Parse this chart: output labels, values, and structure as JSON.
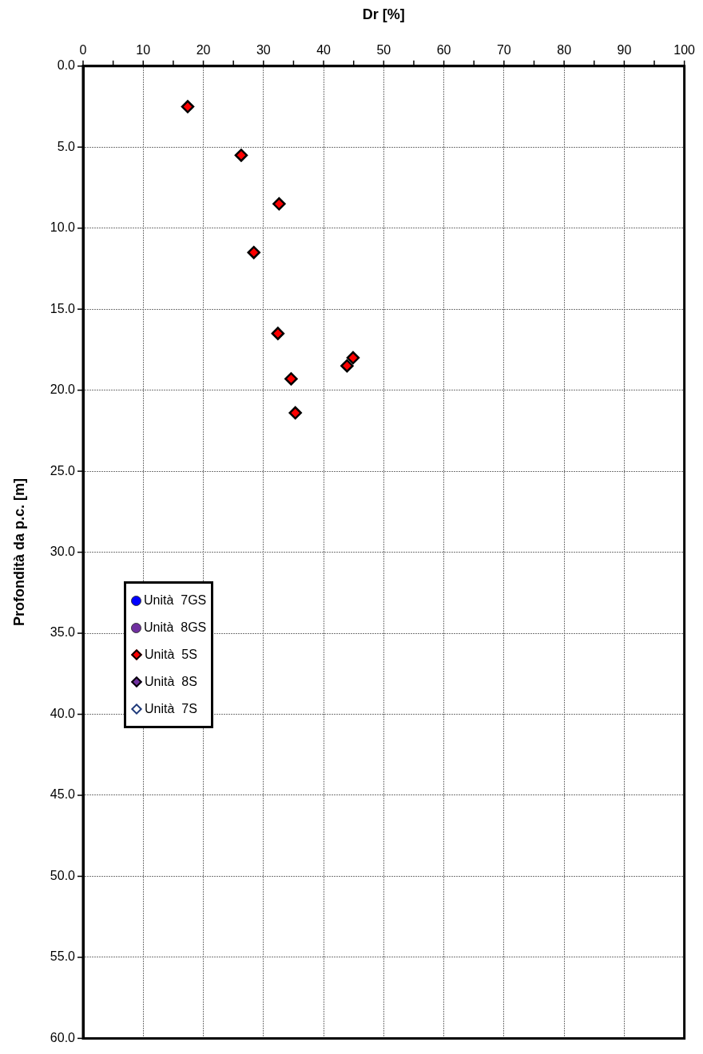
{
  "chart_data": {
    "type": "scatter",
    "xlabel": "Dr [%]",
    "ylabel": "Profondità da p.c. [m]",
    "xlim": [
      0,
      100
    ],
    "xticks": [
      0,
      {
        "value": 5,
        "label": null
      },
      10,
      {
        "value": 15,
        "label": null
      },
      20,
      {
        "value": 25,
        "label": null
      },
      30,
      {
        "value": 35,
        "label": null
      },
      40,
      {
        "value": 45,
        "label": null
      },
      50,
      {
        "value": 55,
        "label": null
      },
      60,
      {
        "value": 65,
        "label": null
      },
      70,
      {
        "value": 75,
        "label": null
      },
      80,
      {
        "value": 85,
        "label": null
      },
      90,
      {
        "value": 95,
        "label": null
      },
      100
    ],
    "ylim": [
      60,
      0
    ],
    "yticks": [
      {
        "value": 0,
        "label": "0.0"
      },
      {
        "value": 5,
        "label": "5.0"
      },
      {
        "value": 10,
        "label": "10.0"
      },
      {
        "value": 15,
        "label": "15.0"
      },
      {
        "value": 20,
        "label": "20.0"
      },
      {
        "value": 25,
        "label": "25.0"
      },
      {
        "value": 30,
        "label": "30.0"
      },
      {
        "value": 35,
        "label": "35.0"
      },
      {
        "value": 40,
        "label": "40.0"
      },
      {
        "value": 45,
        "label": "45.0"
      },
      {
        "value": 50,
        "label": "50.0"
      },
      {
        "value": 55,
        "label": "55.0"
      },
      {
        "value": 60,
        "label": "60.0"
      }
    ],
    "grid": true,
    "legend": "left",
    "series": [
      {
        "name": "Unità  7GS",
        "color": "#0000ff",
        "marker": "circle"
      },
      {
        "name": "Unità  8GS",
        "color": "#7030a0",
        "marker": "circle"
      },
      {
        "name": "Unità  5S",
        "color": "#ff0000",
        "marker": "diamond",
        "x": [
          17.4,
          26.3,
          32.6,
          28.4,
          32.4,
          44.9,
          43.9,
          34.6,
          35.3
        ],
        "values": [
          2.5,
          5.5,
          8.5,
          11.5,
          16.5,
          18.0,
          18.5,
          19.3,
          21.4
        ]
      },
      {
        "name": "Unità  8S",
        "color": "#7030a0",
        "marker": "diamond"
      },
      {
        "name": "Unità  7S",
        "color": "#ffffff",
        "marker": "diamond"
      }
    ]
  }
}
